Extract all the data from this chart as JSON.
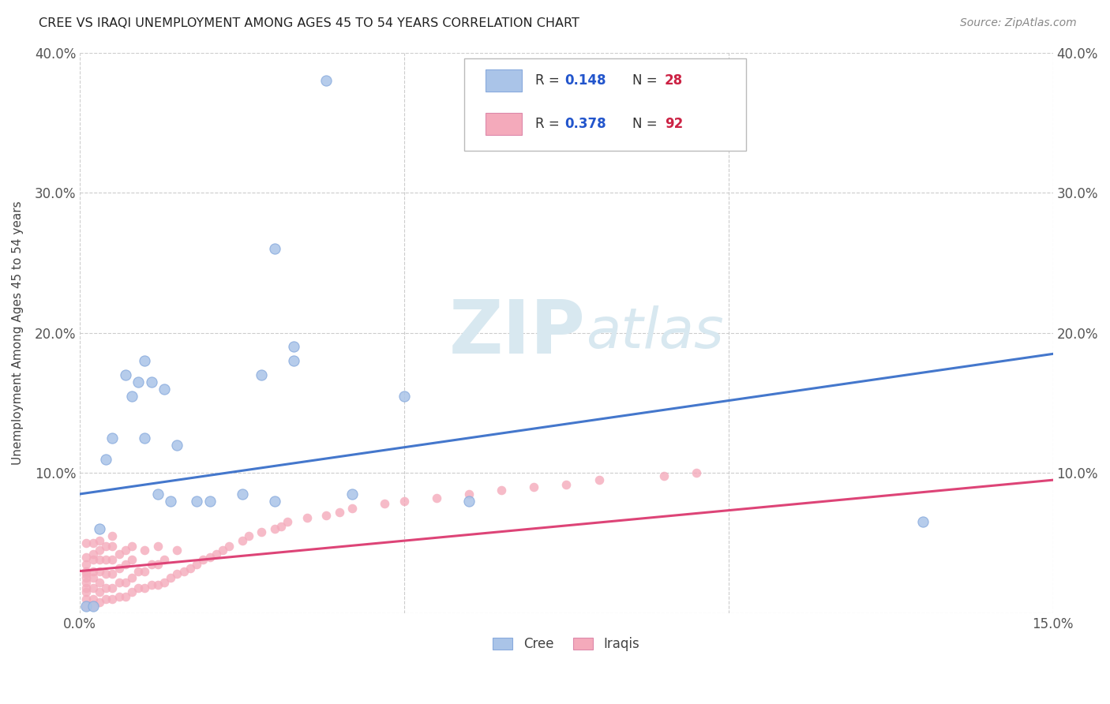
{
  "title": "CREE VS IRAQI UNEMPLOYMENT AMONG AGES 45 TO 54 YEARS CORRELATION CHART",
  "source": "Source: ZipAtlas.com",
  "ylabel": "Unemployment Among Ages 45 to 54 years",
  "xlim": [
    0.0,
    0.15
  ],
  "ylim": [
    0.0,
    0.4
  ],
  "background_color": "#ffffff",
  "grid_color": "#cccccc",
  "cree_color": "#aac4e8",
  "iraqi_color": "#f4aabb",
  "cree_R": 0.148,
  "cree_N": 28,
  "iraqi_R": 0.378,
  "iraqi_N": 92,
  "cree_line_color": "#4477cc",
  "iraqi_line_color": "#dd4477",
  "legend_R_color": "#2255cc",
  "legend_N_color": "#cc2244",
  "cree_line_x0": 0.0,
  "cree_line_y0": 0.085,
  "cree_line_x1": 0.15,
  "cree_line_y1": 0.185,
  "iraqi_line_x0": 0.0,
  "iraqi_line_y0": 0.03,
  "iraqi_line_x1": 0.15,
  "iraqi_line_y1": 0.095,
  "cree_x": [
    0.001,
    0.002,
    0.003,
    0.004,
    0.005,
    0.007,
    0.008,
    0.009,
    0.01,
    0.01,
    0.011,
    0.012,
    0.013,
    0.014,
    0.015,
    0.018,
    0.02,
    0.025,
    0.028,
    0.03,
    0.03,
    0.033,
    0.033,
    0.038,
    0.042,
    0.05,
    0.06,
    0.13
  ],
  "cree_y": [
    0.005,
    0.005,
    0.06,
    0.11,
    0.125,
    0.17,
    0.155,
    0.165,
    0.125,
    0.18,
    0.165,
    0.085,
    0.16,
    0.08,
    0.12,
    0.08,
    0.08,
    0.085,
    0.17,
    0.26,
    0.08,
    0.18,
    0.19,
    0.38,
    0.085,
    0.155,
    0.08,
    0.065
  ],
  "iraqi_x": [
    0.001,
    0.001,
    0.001,
    0.001,
    0.001,
    0.001,
    0.001,
    0.001,
    0.001,
    0.001,
    0.001,
    0.002,
    0.002,
    0.002,
    0.002,
    0.002,
    0.002,
    0.002,
    0.002,
    0.003,
    0.003,
    0.003,
    0.003,
    0.003,
    0.003,
    0.003,
    0.004,
    0.004,
    0.004,
    0.004,
    0.004,
    0.005,
    0.005,
    0.005,
    0.005,
    0.005,
    0.005,
    0.006,
    0.006,
    0.006,
    0.006,
    0.007,
    0.007,
    0.007,
    0.007,
    0.008,
    0.008,
    0.008,
    0.008,
    0.009,
    0.009,
    0.01,
    0.01,
    0.01,
    0.011,
    0.011,
    0.012,
    0.012,
    0.012,
    0.013,
    0.013,
    0.014,
    0.015,
    0.015,
    0.016,
    0.017,
    0.018,
    0.019,
    0.02,
    0.021,
    0.022,
    0.023,
    0.025,
    0.026,
    0.028,
    0.03,
    0.031,
    0.032,
    0.035,
    0.038,
    0.04,
    0.042,
    0.047,
    0.05,
    0.055,
    0.06,
    0.065,
    0.07,
    0.075,
    0.08,
    0.09,
    0.095
  ],
  "iraqi_y": [
    0.005,
    0.01,
    0.015,
    0.018,
    0.022,
    0.025,
    0.028,
    0.03,
    0.035,
    0.04,
    0.05,
    0.005,
    0.01,
    0.018,
    0.025,
    0.03,
    0.038,
    0.042,
    0.05,
    0.008,
    0.015,
    0.022,
    0.03,
    0.038,
    0.045,
    0.052,
    0.01,
    0.018,
    0.028,
    0.038,
    0.048,
    0.01,
    0.018,
    0.028,
    0.038,
    0.048,
    0.055,
    0.012,
    0.022,
    0.032,
    0.042,
    0.012,
    0.022,
    0.035,
    0.045,
    0.015,
    0.025,
    0.038,
    0.048,
    0.018,
    0.03,
    0.018,
    0.03,
    0.045,
    0.02,
    0.035,
    0.02,
    0.035,
    0.048,
    0.022,
    0.038,
    0.025,
    0.028,
    0.045,
    0.03,
    0.032,
    0.035,
    0.038,
    0.04,
    0.042,
    0.045,
    0.048,
    0.052,
    0.055,
    0.058,
    0.06,
    0.062,
    0.065,
    0.068,
    0.07,
    0.072,
    0.075,
    0.078,
    0.08,
    0.082,
    0.085,
    0.088,
    0.09,
    0.092,
    0.095,
    0.098,
    0.1
  ]
}
